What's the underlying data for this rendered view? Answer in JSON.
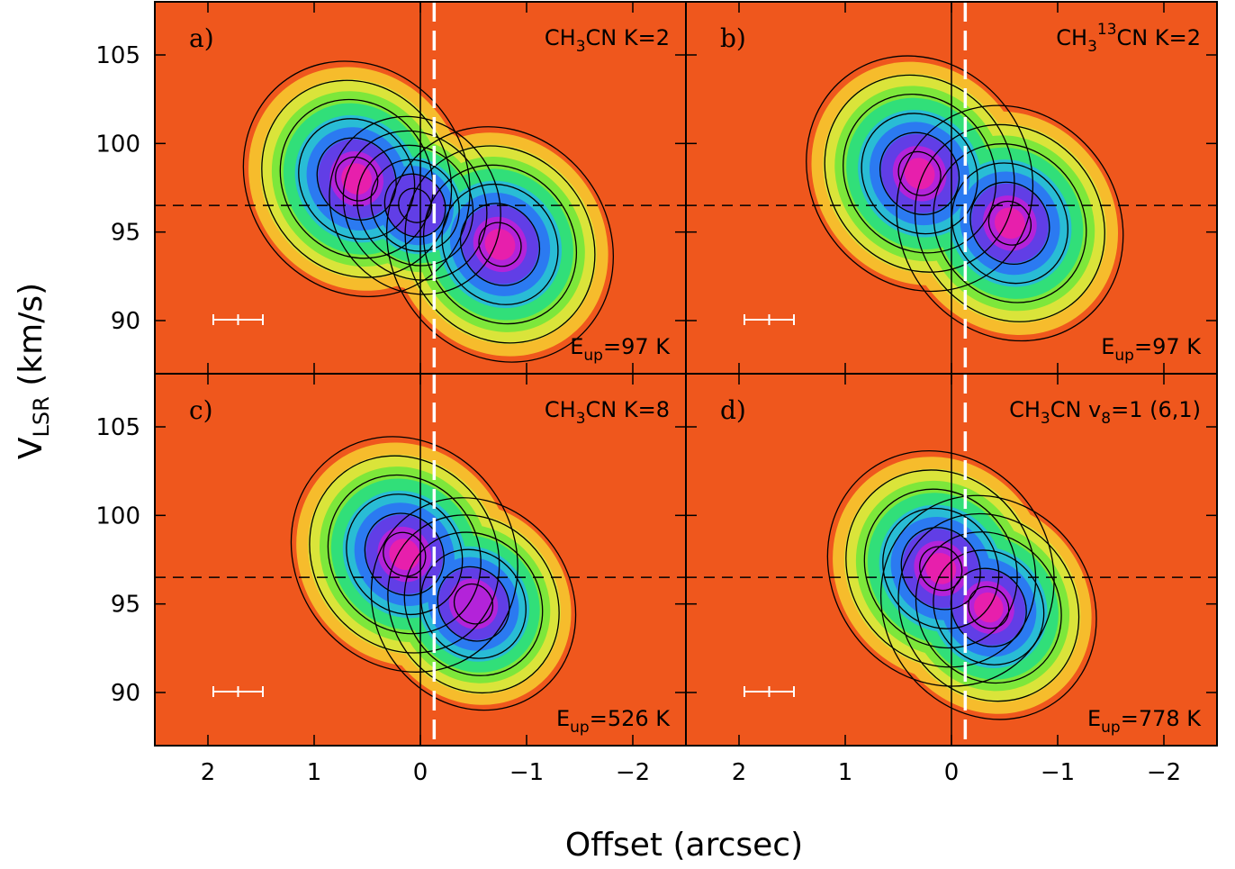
{
  "chart_data": {
    "type": "heatmap",
    "description_type": "position-velocity diagrams with contours",
    "xlabel": "Offset (arcsec)",
    "ylabel_main": "V",
    "ylabel_sub": "LSR",
    "ylabel_unit": " (km/s)",
    "xlim": [
      2.5,
      -2.5
    ],
    "ylim": [
      87,
      108
    ],
    "xticks": [
      2,
      1,
      0,
      -1,
      -2
    ],
    "xtick_labels": [
      "2",
      "1",
      "0",
      "−1",
      "−2"
    ],
    "yticks": [
      90,
      95,
      100,
      105
    ],
    "ytick_labels": [
      "90",
      "95",
      "100",
      "105"
    ],
    "reference_velocity": 96.5,
    "reference_offset_solid": 0.0,
    "reference_offset_dashed": -0.13,
    "panels": [
      {
        "letter": "a)",
        "species": "CH3CN K=2",
        "species_parts": [
          "CH",
          "3",
          "CN K=2"
        ],
        "eup": "97 K",
        "emission_peaks": [
          {
            "offset": 0.6,
            "velocity": 98.0,
            "strength": 1.0
          },
          {
            "offset": -0.75,
            "velocity": 94.3,
            "strength": 1.0
          },
          {
            "offset": 0.05,
            "velocity": 96.5,
            "strength": 0.75
          }
        ]
      },
      {
        "letter": "b)",
        "species": "CH3 13CN K=2",
        "species_parts": [
          "CH",
          "3",
          "13",
          "CN K=2"
        ],
        "eup": "97 K",
        "emission_peaks": [
          {
            "offset": 0.3,
            "velocity": 98.3,
            "strength": 1.0
          },
          {
            "offset": -0.55,
            "velocity": 95.5,
            "strength": 1.0
          }
        ]
      },
      {
        "letter": "c)",
        "species": "CH3CN K=8",
        "species_parts": [
          "CH",
          "3",
          "CN K=8"
        ],
        "eup": "526 K",
        "emission_peaks": [
          {
            "offset": 0.15,
            "velocity": 97.8,
            "strength": 1.0
          },
          {
            "offset": -0.5,
            "velocity": 95.0,
            "strength": 0.9
          }
        ]
      },
      {
        "letter": "d)",
        "species": "CH3CN v8=1 (6,1)",
        "species_parts": [
          "CH",
          "3",
          "CN v",
          "8",
          "=1 (6,1)"
        ],
        "eup": "778 K",
        "emission_peaks": [
          {
            "offset": 0.1,
            "velocity": 97.0,
            "strength": 1.0
          },
          {
            "offset": -0.35,
            "velocity": 94.8,
            "strength": 0.95
          }
        ]
      }
    ],
    "colormap": [
      "#e8321c",
      "#f26a1e",
      "#f7a623",
      "#f3e13a",
      "#b8e83a",
      "#3ce63c",
      "#27d8b0",
      "#2aa8f0",
      "#2b5ef2",
      "#7a2fe0",
      "#c81fd6",
      "#f01fa0"
    ],
    "contour_color": "#000000",
    "reference_line_colors": {
      "velocity": "#000000",
      "solid_offset": "#000000",
      "dashed_offset": "#ffffff"
    }
  }
}
